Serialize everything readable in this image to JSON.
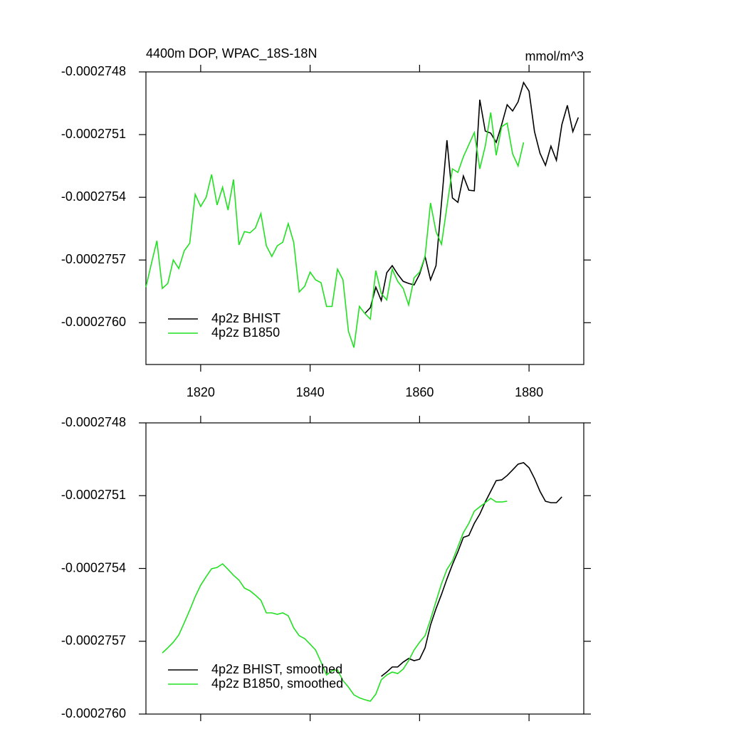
{
  "chart_data": [
    {
      "type": "line",
      "title": "4400m DOP, WPAC_18S-18N",
      "units": "mmol/m^3",
      "xlim": [
        1810,
        1890
      ],
      "xticks": [
        1820,
        1840,
        1860,
        1880
      ],
      "xtick_labels": true,
      "ylim": [
        -0.0002762,
        -0.0002748
      ],
      "yticks": [
        -0.0002748,
        -0.0002751,
        -0.0002754,
        -0.0002757,
        {
          "value": -0.000276,
          "label": "-0.0002760"
        }
      ],
      "legend": "lower left",
      "x": [
        1810,
        1811,
        1812,
        1813,
        1814,
        1815,
        1816,
        1817,
        1818,
        1819,
        1820,
        1821,
        1822,
        1823,
        1824,
        1825,
        1826,
        1827,
        1828,
        1829,
        1830,
        1831,
        1832,
        1833,
        1834,
        1835,
        1836,
        1837,
        1838,
        1839,
        1840,
        1841,
        1842,
        1843,
        1844,
        1845,
        1846,
        1847,
        1848,
        1849,
        1850,
        1851,
        1852,
        1853,
        1854,
        1855,
        1856,
        1857,
        1858,
        1859,
        1860,
        1861,
        1862,
        1863,
        1864,
        1865,
        1866,
        1867,
        1868,
        1869,
        1870,
        1871,
        1872,
        1873,
        1874,
        1875,
        1876,
        1877,
        1878,
        1879,
        1880,
        1881,
        1882,
        1883,
        1884,
        1885,
        1886,
        1887,
        1888,
        1889
      ],
      "series": [
        {
          "name": "4p2z BHIST",
          "color": "#000000",
          "values": [
            null,
            null,
            null,
            null,
            null,
            null,
            null,
            null,
            null,
            null,
            null,
            null,
            null,
            null,
            null,
            null,
            null,
            null,
            null,
            null,
            null,
            null,
            null,
            null,
            null,
            null,
            null,
            null,
            null,
            null,
            null,
            null,
            null,
            null,
            null,
            null,
            null,
            null,
            null,
            null,
            -0.000275956,
            -0.000275928,
            -0.00027583,
            -0.000275894,
            -0.000275761,
            -0.000275727,
            -0.000275768,
            -0.000275802,
            -0.000275812,
            -0.000275819,
            -0.000275768,
            -0.000275683,
            -0.000275795,
            -0.000275727,
            -0.000275427,
            -0.000275127,
            -0.000275403,
            -0.000275424,
            -0.000275298,
            -0.000275366,
            -0.000275369,
            -0.000274933,
            -0.000275083,
            -0.000275093,
            -0.000275137,
            -0.000275052,
            -0.000274957,
            -0.000274987,
            -0.000274943,
            -0.000274851,
            -0.000274892,
            -0.000275086,
            -0.000275189,
            -0.000275247,
            -0.000275155,
            -0.000275223,
            -0.000275052,
            -0.00027496,
            -0.000275086,
            -0.000275018
          ]
        },
        {
          "name": "4p2z B1850",
          "color": "#22e022",
          "values": [
            -0.00027583,
            -0.000275717,
            -0.000275608,
            -0.000275836,
            -0.000275812,
            -0.0002757,
            -0.000275741,
            -0.000275656,
            -0.00027562,
            -0.000275386,
            -0.000275444,
            -0.0002754,
            -0.000275291,
            -0.000275437,
            -0.000275352,
            -0.000275461,
            -0.000275315,
            -0.000275628,
            -0.000275564,
            -0.00027557,
            -0.000275547,
            -0.000275478,
            -0.000275632,
            -0.000275683,
            -0.000275632,
            -0.000275615,
            -0.000275526,
            -0.000275615,
            -0.000275853,
            -0.000275826,
            -0.000275758,
            -0.000275795,
            -0.000275809,
            -0.000275922,
            -0.000275922,
            -0.000275744,
            -0.000275795,
            -0.000276041,
            -0.000276119,
            -0.000275922,
            -0.000275956,
            -0.000275983,
            -0.000275751,
            -0.00027586,
            -0.000275891,
            -0.000275744,
            -0.000275802,
            -0.000275836,
            -0.000275915,
            -0.000275785,
            -0.000275758,
            -0.000275683,
            -0.000275427,
            -0.000275564,
            -0.000275625,
            -0.000275444,
            -0.000275264,
            -0.000275281,
            -0.000275206,
            -0.000275148,
            -0.00027509,
            -0.000275264,
            -0.000275155,
            -0.000274994,
            -0.000275199,
            -0.000275062,
            -0.000275045,
            -0.000275192,
            -0.00027525,
            -0.000275137,
            null,
            null,
            null,
            null,
            null,
            null,
            null,
            null,
            null,
            null
          ]
        }
      ]
    },
    {
      "type": "line",
      "xlim": [
        1810,
        1890
      ],
      "xticks": [
        1820,
        1840,
        1860,
        1880
      ],
      "xtick_labels": false,
      "ylim": [
        -0.000276,
        -0.0002748
      ],
      "yticks": [
        -0.0002748,
        -0.0002751,
        -0.0002754,
        -0.0002757,
        {
          "value": -0.000276,
          "label": "-0.0002760"
        }
      ],
      "legend": "lower left",
      "x": [
        1813,
        1814,
        1815,
        1816,
        1817,
        1818,
        1819,
        1820,
        1821,
        1822,
        1823,
        1824,
        1825,
        1826,
        1827,
        1828,
        1829,
        1830,
        1831,
        1832,
        1833,
        1834,
        1835,
        1836,
        1837,
        1838,
        1839,
        1840,
        1841,
        1842,
        1843,
        1844,
        1845,
        1846,
        1847,
        1848,
        1849,
        1850,
        1851,
        1852,
        1853,
        1854,
        1855,
        1856,
        1857,
        1858,
        1859,
        1860,
        1861,
        1862,
        1863,
        1864,
        1865,
        1866,
        1867,
        1868,
        1869,
        1870,
        1871,
        1872,
        1873,
        1874,
        1875,
        1876,
        1877,
        1878,
        1879,
        1880,
        1881,
        1882,
        1883,
        1884,
        1885,
        1886
      ],
      "series": [
        {
          "name": "4p2z BHIST, smoothed",
          "color": "#000000",
          "values": [
            null,
            null,
            null,
            null,
            null,
            null,
            null,
            null,
            null,
            null,
            null,
            null,
            null,
            null,
            null,
            null,
            null,
            null,
            null,
            null,
            null,
            null,
            null,
            null,
            null,
            null,
            null,
            null,
            null,
            null,
            null,
            null,
            null,
            null,
            null,
            null,
            null,
            null,
            null,
            null,
            -0.000275845,
            -0.000275827,
            -0.000275806,
            -0.000275806,
            -0.000275786,
            -0.000275771,
            -0.00027578,
            -0.000275774,
            -0.000275727,
            -0.000275633,
            -0.000275566,
            -0.000275507,
            -0.000275443,
            -0.000275384,
            -0.000275331,
            -0.000275272,
            -0.000275264,
            -0.000275214,
            -0.000275176,
            -0.000275126,
            -0.000275082,
            -0.000275038,
            -0.000275035,
            -0.000275017,
            -0.000274994,
            -0.00027497,
            -0.000274964,
            -0.000274985,
            -0.000275029,
            -0.000275082,
            -0.000275123,
            -0.000275129,
            -0.000275129,
            -0.000275105
          ]
        },
        {
          "name": "4p2z B1850, smoothed",
          "color": "#22e022",
          "values": [
            -0.000275748,
            -0.000275727,
            -0.000275704,
            -0.000275674,
            -0.000275624,
            -0.000275572,
            -0.000275516,
            -0.000275469,
            -0.000275434,
            -0.000275401,
            -0.000275396,
            -0.000275381,
            -0.000275404,
            -0.000275428,
            -0.000275448,
            -0.000275481,
            -0.000275492,
            -0.00027551,
            -0.000275531,
            -0.000275583,
            -0.000275583,
            -0.000275589,
            -0.000275583,
            -0.000275595,
            -0.000275645,
            -0.000275677,
            -0.000275689,
            -0.000275712,
            -0.000275736,
            -0.000275786,
            -0.000275839,
            -0.000275821,
            -0.000275818,
            -0.000275862,
            -0.000275889,
            -0.000275921,
            -0.000275933,
            -0.000275941,
            -0.000275947,
            -0.000275918,
            -0.000275859,
            -0.000275839,
            -0.000275827,
            -0.000275833,
            -0.000275815,
            -0.00027578,
            -0.000275736,
            -0.000275704,
            -0.000275677,
            -0.00027561,
            -0.000275536,
            -0.000275463,
            -0.000275404,
            -0.000275369,
            -0.000275311,
            -0.000275252,
            -0.000275214,
            -0.000275164,
            -0.000275146,
            -0.000275129,
            -0.000275111,
            -0.000275126,
            -0.000275126,
            -0.000275123,
            null,
            null,
            null,
            null,
            null,
            null,
            null,
            null,
            null,
            null
          ]
        }
      ]
    }
  ]
}
